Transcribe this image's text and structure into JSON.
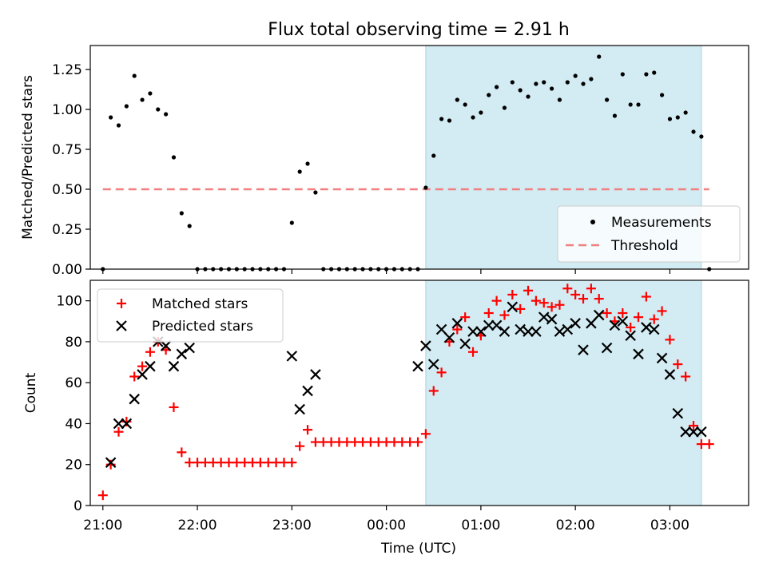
{
  "title": "Flux total observing time = 2.91 h",
  "chart_data": [
    {
      "type": "scatter",
      "ylabel": "Matched/Predicted stars",
      "ylim": [
        0,
        1.4
      ],
      "yticks": [
        "0.00",
        "0.25",
        "0.50",
        "0.75",
        "1.00",
        "1.25"
      ],
      "ytick_values": [
        0,
        0.25,
        0.5,
        0.75,
        1.0,
        1.25
      ],
      "legend_position": "lower-right",
      "threshold": {
        "name": "Threshold",
        "value": 0.5,
        "x_start": "21:00",
        "x_end": "03:25",
        "color": "#f08080"
      },
      "series": [
        {
          "name": "Measurements",
          "color": "#000000",
          "x": [
            "21:00",
            "21:05",
            "21:10",
            "21:15",
            "21:20",
            "21:25",
            "21:30",
            "21:35",
            "21:40",
            "21:45",
            "21:50",
            "21:55",
            "22:00",
            "22:05",
            "22:10",
            "22:15",
            "22:20",
            "22:25",
            "22:30",
            "22:35",
            "22:40",
            "22:45",
            "22:50",
            "22:55",
            "23:00",
            "23:05",
            "23:10",
            "23:15",
            "23:20",
            "23:25",
            "23:30",
            "23:35",
            "23:40",
            "23:45",
            "23:50",
            "23:55",
            "00:00",
            "00:05",
            "00:10",
            "00:15",
            "00:20",
            "00:25",
            "00:30",
            "00:35",
            "00:40",
            "00:45",
            "00:50",
            "00:55",
            "01:00",
            "01:05",
            "01:10",
            "01:15",
            "01:20",
            "01:25",
            "01:30",
            "01:35",
            "01:40",
            "01:45",
            "01:50",
            "01:55",
            "02:00",
            "02:05",
            "02:10",
            "02:15",
            "02:20",
            "02:25",
            "02:30",
            "02:35",
            "02:40",
            "02:45",
            "02:50",
            "02:55",
            "03:00",
            "03:05",
            "03:10",
            "03:15",
            "03:20",
            "03:25"
          ],
          "y": [
            0.0,
            0.95,
            0.9,
            1.02,
            1.21,
            1.06,
            1.1,
            1.0,
            0.97,
            0.7,
            0.35,
            0.27,
            0.0,
            0.0,
            0.0,
            0.0,
            0.0,
            0.0,
            0.0,
            0.0,
            0.0,
            0.0,
            0.0,
            0.0,
            0.29,
            0.61,
            0.66,
            0.48,
            0.0,
            0.0,
            0.0,
            0.0,
            0.0,
            0.0,
            0.0,
            0.0,
            0.0,
            0.0,
            0.0,
            0.0,
            0.0,
            0.51,
            0.71,
            0.94,
            0.93,
            1.06,
            1.03,
            0.95,
            0.98,
            1.09,
            1.14,
            1.01,
            1.17,
            1.12,
            1.08,
            1.16,
            1.17,
            1.13,
            1.06,
            1.17,
            1.21,
            1.16,
            1.19,
            1.33,
            1.06,
            0.96,
            1.22,
            1.03,
            1.03,
            1.22,
            1.23,
            1.09,
            0.94,
            0.95,
            0.98,
            0.86,
            0.83,
            0.0
          ]
        }
      ]
    },
    {
      "type": "scatter",
      "xlabel": "Time (UTC)",
      "ylabel": "Count",
      "ylim": [
        0,
        110
      ],
      "yticks": [
        "0",
        "20",
        "40",
        "60",
        "80",
        "100"
      ],
      "ytick_values": [
        0,
        20,
        40,
        60,
        80,
        100
      ],
      "legend_position": "upper-left",
      "series": [
        {
          "name": "Matched stars",
          "marker": "plus",
          "color": "#ff0000",
          "x": [
            "21:00",
            "21:05",
            "21:10",
            "21:15",
            "21:20",
            "21:25",
            "21:30",
            "21:35",
            "21:40",
            "21:45",
            "21:50",
            "21:55",
            "22:00",
            "22:05",
            "22:10",
            "22:15",
            "22:20",
            "22:25",
            "22:30",
            "22:35",
            "22:40",
            "22:45",
            "22:50",
            "22:55",
            "23:00",
            "23:05",
            "23:10",
            "23:15",
            "23:20",
            "23:25",
            "23:30",
            "23:35",
            "23:40",
            "23:45",
            "23:50",
            "23:55",
            "00:00",
            "00:05",
            "00:10",
            "00:15",
            "00:20",
            "00:25",
            "00:30",
            "00:35",
            "00:40",
            "00:45",
            "00:50",
            "00:55",
            "01:00",
            "01:05",
            "01:10",
            "01:15",
            "01:20",
            "01:25",
            "01:30",
            "01:35",
            "01:40",
            "01:45",
            "01:50",
            "01:55",
            "02:00",
            "02:05",
            "02:10",
            "02:15",
            "02:20",
            "02:25",
            "02:30",
            "02:35",
            "02:40",
            "02:45",
            "02:50",
            "02:55",
            "03:00",
            "03:05",
            "03:10",
            "03:15",
            "03:20",
            "03:25"
          ],
          "y": [
            5,
            20,
            36,
            41,
            63,
            68,
            75,
            80,
            76,
            48,
            26,
            21,
            21,
            21,
            21,
            21,
            21,
            21,
            21,
            21,
            21,
            21,
            21,
            21,
            21,
            29,
            37,
            31,
            31,
            31,
            31,
            31,
            31,
            31,
            31,
            31,
            31,
            31,
            31,
            31,
            31,
            35,
            56,
            65,
            80,
            86,
            92,
            75,
            83,
            94,
            100,
            93,
            103,
            96,
            105,
            100,
            99,
            97,
            98,
            106,
            103,
            101,
            106,
            101,
            94,
            90,
            94,
            87,
            92,
            102,
            91,
            95,
            81,
            69,
            63,
            39,
            30,
            30
          ]
        },
        {
          "name": "Predicted stars",
          "marker": "x",
          "color": "#000000",
          "x": [
            "21:05",
            "21:10",
            "21:15",
            "21:20",
            "21:25",
            "21:30",
            "21:35",
            "21:40",
            "21:45",
            "21:50",
            "21:55",
            "23:00",
            "23:05",
            "23:10",
            "23:15",
            "00:20",
            "00:25",
            "00:30",
            "00:35",
            "00:40",
            "00:45",
            "00:50",
            "00:55",
            "01:00",
            "01:05",
            "01:10",
            "01:15",
            "01:20",
            "01:25",
            "01:30",
            "01:35",
            "01:40",
            "01:45",
            "01:50",
            "01:55",
            "02:00",
            "02:05",
            "02:10",
            "02:15",
            "02:20",
            "02:25",
            "02:30",
            "02:35",
            "02:40",
            "02:45",
            "02:50",
            "02:55",
            "03:00",
            "03:05",
            "03:10",
            "03:15",
            "03:20"
          ],
          "y": [
            21,
            40,
            40,
            52,
            64,
            68,
            80,
            78,
            68,
            74,
            77,
            73,
            47,
            56,
            64,
            68,
            78,
            69,
            86,
            82,
            89,
            79,
            85,
            85,
            88,
            88,
            85,
            97,
            86,
            85,
            85,
            92,
            91,
            85,
            86,
            89,
            76,
            89,
            93,
            77,
            88,
            90,
            83,
            74,
            87,
            86,
            72,
            64,
            45,
            36,
            36,
            36
          ]
        }
      ]
    }
  ],
  "x_axis": {
    "ticks": [
      "21:00",
      "22:00",
      "23:00",
      "00:00",
      "01:00",
      "02:00",
      "03:00"
    ],
    "range": [
      "20:52",
      "03:50"
    ]
  },
  "shaded_region": {
    "start": "00:25",
    "end": "03:20",
    "color": "#d3ebf2"
  }
}
